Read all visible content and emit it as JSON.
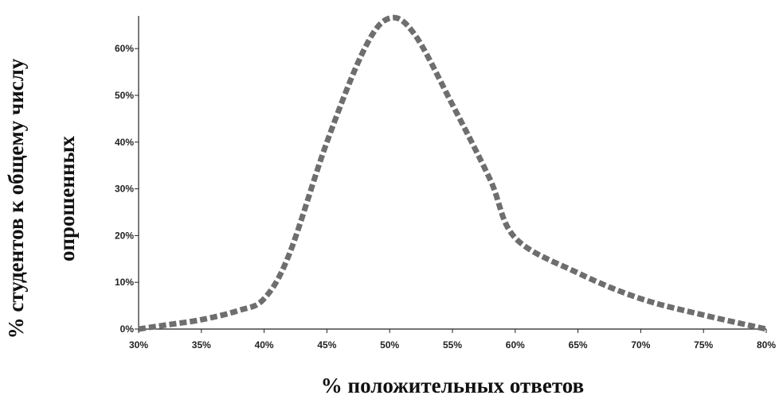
{
  "chart_data": {
    "type": "line",
    "title": "",
    "xlabel": "% положительных ответов",
    "ylabel_line1": "% студентов к общему числу",
    "ylabel_line2": "опрошенных",
    "x_ticks": [
      "30%",
      "35%",
      "40%",
      "45%",
      "50%",
      "55%",
      "60%",
      "65%",
      "70%",
      "75%",
      "80%"
    ],
    "y_ticks": [
      "0%",
      "10%",
      "20%",
      "30%",
      "40%",
      "50%",
      "60%"
    ],
    "xlim": [
      30,
      80
    ],
    "ylim": [
      0,
      67
    ],
    "grid": false,
    "legend": "none",
    "series": [
      {
        "style": "dashed",
        "color": "#6e6e6e",
        "x": [
          30,
          32,
          35,
          38,
          40,
          42,
          45,
          48,
          50,
          52,
          55,
          58,
          60,
          65,
          70,
          75,
          80
        ],
        "y": [
          0,
          0.8,
          2,
          4,
          6.5,
          16,
          40,
          60,
          66.5,
          63,
          48,
          32,
          19.5,
          12,
          6.5,
          3,
          0
        ]
      }
    ]
  }
}
